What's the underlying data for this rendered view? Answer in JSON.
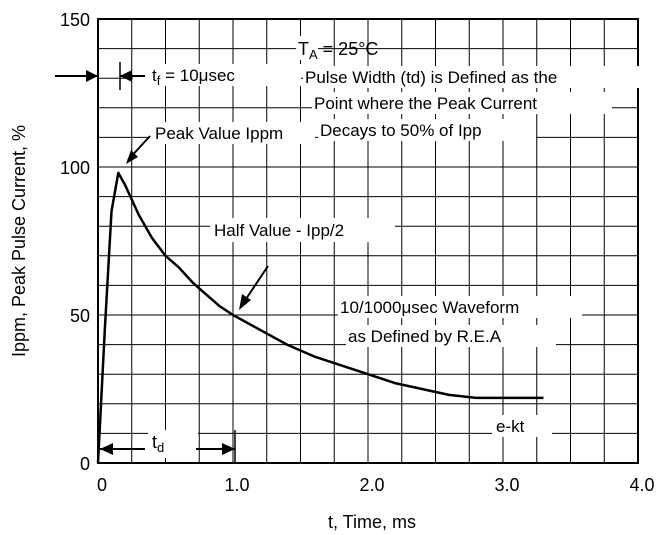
{
  "chart_data": {
    "type": "line",
    "xlabel": "t, Time, ms",
    "ylabel": "Ippm, Peak Pulse Current, %",
    "xlim": [
      0,
      4.0
    ],
    "ylim": [
      0,
      150
    ],
    "x_ticks": [
      {
        "value": 0,
        "label": "0"
      },
      {
        "value": 1.0,
        "label": "1.0"
      },
      {
        "value": 2.0,
        "label": "2.0"
      },
      {
        "value": 3.0,
        "label": "3.0"
      },
      {
        "value": 4.0,
        "label": "4.0"
      }
    ],
    "y_ticks": [
      {
        "value": 0,
        "label": "0"
      },
      {
        "value": 50,
        "label": "50"
      },
      {
        "value": 100,
        "label": "100"
      },
      {
        "value": 150,
        "label": "150"
      }
    ],
    "grid": true,
    "series": [
      {
        "x": [
          0,
          0.05,
          0.1,
          0.15,
          0.2,
          0.25,
          0.3,
          0.4,
          0.5,
          0.6,
          0.7,
          0.8,
          0.9,
          1.0,
          1.2,
          1.4,
          1.6,
          1.8,
          2.0,
          2.2,
          2.4,
          2.6,
          2.8,
          3.0,
          3.2,
          3.3
        ],
        "y": [
          0,
          45,
          85,
          98,
          94,
          89,
          84,
          76,
          70,
          66,
          61,
          57,
          53,
          50,
          45,
          40,
          36,
          33,
          30,
          27,
          25,
          23,
          22,
          22,
          22,
          22
        ]
      }
    ],
    "annotations": {
      "ta": "T",
      "ta_sub": "A",
      "ta_rest": " = 25°C",
      "pulse_1": "Pulse Width (td) is Defined as the",
      "pulse_2": "Point  where the Peak Current",
      "pulse_3": "Decays to 50% of Ipp",
      "tf_main": "t",
      "tf_sub": "f",
      "tf_rest": " = 10μsec",
      "peak": "Peak Value Ippm",
      "half": "Half Value - Ipp/2",
      "waveform_1": "10/1000μsec Waveform",
      "waveform_2": "as Defined by R.E.A",
      "ekt": "e-kt",
      "td_main": "t",
      "td_sub": "d"
    }
  }
}
